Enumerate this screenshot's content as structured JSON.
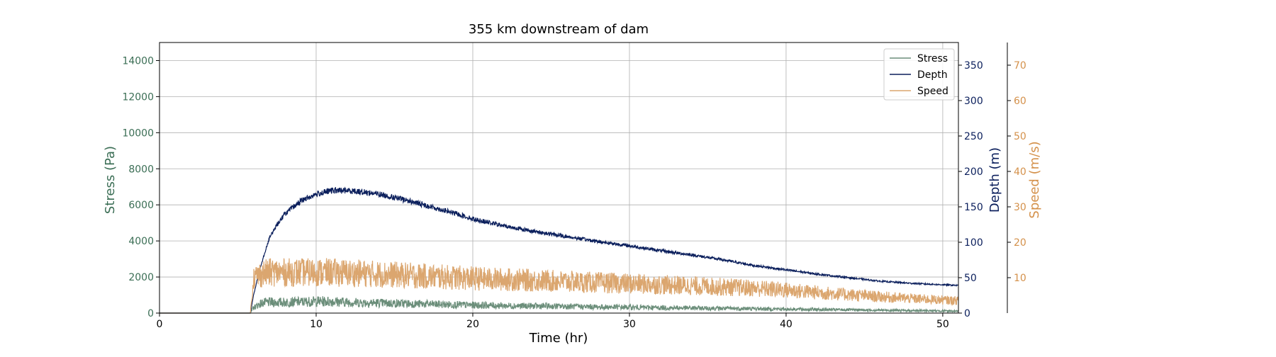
{
  "chart_data": {
    "type": "line",
    "title": "355 km downstream of dam",
    "xlabel": "Time (hr)",
    "xlim": [
      0,
      51
    ],
    "xticks": [
      0,
      10,
      20,
      30,
      40,
      50
    ],
    "grid": true,
    "legend_position": "top-right",
    "axes": {
      "stress": {
        "label": "Stress (Pa)",
        "color": "#3b6e55",
        "ylim": [
          0,
          15000
        ],
        "ticks": [
          0,
          2000,
          4000,
          6000,
          8000,
          10000,
          12000,
          14000
        ]
      },
      "depth": {
        "label": "Depth (m)",
        "color": "#0b1f5c",
        "ylim": [
          0,
          382
        ],
        "ticks": [
          0,
          50,
          100,
          150,
          200,
          250,
          300,
          350
        ]
      },
      "speed": {
        "label": "Speed (m/s)",
        "color": "#d4914b",
        "ylim": [
          0,
          76.4
        ],
        "ticks": [
          10,
          20,
          30,
          40,
          50,
          60,
          70
        ]
      }
    },
    "x": [
      0,
      5.5,
      5.8,
      6,
      6.5,
      7,
      7.5,
      8,
      9,
      10,
      11,
      12,
      13,
      14,
      15,
      16,
      17,
      18,
      19,
      20,
      21,
      22,
      24,
      26,
      28,
      30,
      32,
      34,
      36,
      38,
      40,
      42,
      44,
      46,
      48,
      50,
      51
    ],
    "series": [
      {
        "name": "Stress",
        "axis": "stress",
        "color": "#6b8e7a",
        "values": [
          0,
          0,
          0,
          300,
          550,
          600,
          600,
          600,
          620,
          650,
          650,
          600,
          580,
          560,
          540,
          520,
          500,
          480,
          460,
          440,
          430,
          410,
          390,
          370,
          340,
          320,
          300,
          280,
          260,
          240,
          220,
          200,
          180,
          160,
          140,
          120,
          110
        ]
      },
      {
        "name": "Depth",
        "axis": "depth",
        "color": "#0b1f5c",
        "values": [
          0,
          0,
          0,
          25,
          70,
          105,
          125,
          140,
          158,
          168,
          173,
          173,
          171,
          168,
          163,
          158,
          152,
          146,
          140,
          133,
          128,
          123,
          115,
          108,
          101,
          95,
          88,
          82,
          75,
          67,
          61,
          55,
          50,
          45,
          42,
          40,
          39
        ]
      },
      {
        "name": "Speed",
        "axis": "speed",
        "color": "#dba66f",
        "values": [
          0,
          0,
          0,
          10,
          11,
          11.5,
          11.5,
          11.5,
          11.5,
          11.5,
          11.5,
          11.3,
          11.2,
          11,
          10.8,
          10.6,
          10.4,
          10.2,
          10,
          9.8,
          9.6,
          9.5,
          9.2,
          8.9,
          8.6,
          8.3,
          8,
          7.7,
          7.4,
          7,
          6.5,
          5.8,
          5.2,
          4.6,
          4.1,
          3.7,
          3.5
        ]
      }
    ]
  }
}
